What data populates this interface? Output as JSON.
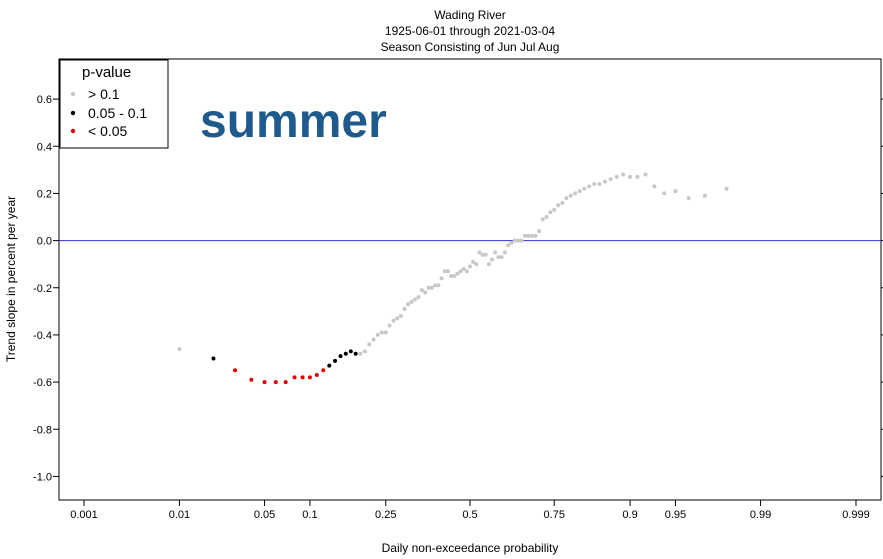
{
  "chart_data": {
    "type": "scatter",
    "title_lines": [
      "Wading River",
      "1925-06-01 through 2021-03-04",
      "Season Consisting of Jun Jul Aug"
    ],
    "xlabel": "Daily non-exceedance probability",
    "ylabel": "Trend slope in percent per year",
    "x_scale": "probability (normal quantile)",
    "x_ticks": [
      0.001,
      0.01,
      0.05,
      0.1,
      0.25,
      0.5,
      0.75,
      0.9,
      0.95,
      0.99,
      0.999
    ],
    "x_tick_labels": [
      "0.001",
      "0.01",
      "0.05",
      "0.1",
      "0.25",
      "0.5",
      "0.75",
      "0.9",
      "0.95",
      "0.99",
      "0.999"
    ],
    "y_ticks": [
      -1.0,
      -0.8,
      -0.6,
      -0.4,
      -0.2,
      0.0,
      0.2,
      0.4,
      0.6
    ],
    "y_tick_labels": [
      "-1.0",
      "-0.8",
      "-0.6",
      "-0.4",
      "-0.2",
      "0.0",
      "0.2",
      "0.4",
      "0.6"
    ],
    "xlim": [
      0.0005,
      0.9995
    ],
    "ylim": [
      -1.1,
      0.77
    ],
    "reference_line": {
      "y": 0.0,
      "color": "#3333cc"
    },
    "overlay_label": "summer",
    "legend": {
      "title": "p-value",
      "position": "top-left",
      "entries": [
        {
          "label": "> 0.1",
          "color": "#c8c8c8"
        },
        {
          "label": "0.05 - 0.1",
          "color": "#000000"
        },
        {
          "label": "< 0.05",
          "color": "#e00000"
        }
      ]
    },
    "series": [
      {
        "label": "> 0.1",
        "color": "#c8c8c8",
        "points": [
          [
            0.01,
            -0.46
          ],
          [
            0.19,
            -0.48
          ],
          [
            0.2,
            -0.47
          ],
          [
            0.21,
            -0.44
          ],
          [
            0.22,
            -0.42
          ],
          [
            0.23,
            -0.4
          ],
          [
            0.24,
            -0.39
          ],
          [
            0.25,
            -0.39
          ],
          [
            0.26,
            -0.36
          ],
          [
            0.27,
            -0.34
          ],
          [
            0.28,
            -0.33
          ],
          [
            0.29,
            -0.32
          ],
          [
            0.3,
            -0.29
          ],
          [
            0.31,
            -0.27
          ],
          [
            0.32,
            -0.26
          ],
          [
            0.33,
            -0.25
          ],
          [
            0.34,
            -0.24
          ],
          [
            0.35,
            -0.21
          ],
          [
            0.36,
            -0.22
          ],
          [
            0.37,
            -0.2
          ],
          [
            0.38,
            -0.2
          ],
          [
            0.39,
            -0.19
          ],
          [
            0.4,
            -0.19
          ],
          [
            0.41,
            -0.16
          ],
          [
            0.42,
            -0.13
          ],
          [
            0.43,
            -0.13
          ],
          [
            0.44,
            -0.15
          ],
          [
            0.45,
            -0.15
          ],
          [
            0.46,
            -0.14
          ],
          [
            0.47,
            -0.13
          ],
          [
            0.48,
            -0.12
          ],
          [
            0.49,
            -0.13
          ],
          [
            0.5,
            -0.11
          ],
          [
            0.51,
            -0.09
          ],
          [
            0.52,
            -0.1
          ],
          [
            0.53,
            -0.05
          ],
          [
            0.54,
            -0.06
          ],
          [
            0.55,
            -0.06
          ],
          [
            0.56,
            -0.1
          ],
          [
            0.57,
            -0.08
          ],
          [
            0.58,
            -0.05
          ],
          [
            0.59,
            -0.07
          ],
          [
            0.6,
            -0.07
          ],
          [
            0.61,
            -0.05
          ],
          [
            0.62,
            -0.02
          ],
          [
            0.63,
            -0.01
          ],
          [
            0.64,
            0.0
          ],
          [
            0.65,
            0.0
          ],
          [
            0.66,
            0.0
          ],
          [
            0.67,
            0.02
          ],
          [
            0.68,
            0.02
          ],
          [
            0.69,
            0.02
          ],
          [
            0.7,
            0.02
          ],
          [
            0.71,
            0.04
          ],
          [
            0.72,
            0.09
          ],
          [
            0.73,
            0.1
          ],
          [
            0.74,
            0.12
          ],
          [
            0.75,
            0.13
          ],
          [
            0.76,
            0.15
          ],
          [
            0.77,
            0.16
          ],
          [
            0.78,
            0.18
          ],
          [
            0.79,
            0.19
          ],
          [
            0.8,
            0.2
          ],
          [
            0.81,
            0.21
          ],
          [
            0.82,
            0.22
          ],
          [
            0.83,
            0.23
          ],
          [
            0.84,
            0.24
          ],
          [
            0.85,
            0.24
          ],
          [
            0.86,
            0.25
          ],
          [
            0.87,
            0.26
          ],
          [
            0.88,
            0.27
          ],
          [
            0.89,
            0.28
          ],
          [
            0.9,
            0.27
          ],
          [
            0.91,
            0.27
          ],
          [
            0.92,
            0.28
          ],
          [
            0.93,
            0.23
          ],
          [
            0.94,
            0.2
          ],
          [
            0.95,
            0.21
          ],
          [
            0.96,
            0.18
          ],
          [
            0.97,
            0.19
          ],
          [
            0.98,
            0.22
          ]
        ]
      },
      {
        "label": "0.05 - 0.1",
        "color": "#000000",
        "points": [
          [
            0.02,
            -0.5
          ],
          [
            0.13,
            -0.53
          ],
          [
            0.14,
            -0.51
          ],
          [
            0.15,
            -0.49
          ],
          [
            0.16,
            -0.48
          ],
          [
            0.17,
            -0.47
          ],
          [
            0.18,
            -0.48
          ]
        ]
      },
      {
        "label": "< 0.05",
        "color": "#e00000",
        "points": [
          [
            0.03,
            -0.55
          ],
          [
            0.04,
            -0.59
          ],
          [
            0.05,
            -0.6
          ],
          [
            0.06,
            -0.6
          ],
          [
            0.07,
            -0.6
          ],
          [
            0.08,
            -0.58
          ],
          [
            0.09,
            -0.58
          ],
          [
            0.1,
            -0.58
          ],
          [
            0.11,
            -0.57
          ],
          [
            0.12,
            -0.55
          ]
        ]
      }
    ]
  }
}
